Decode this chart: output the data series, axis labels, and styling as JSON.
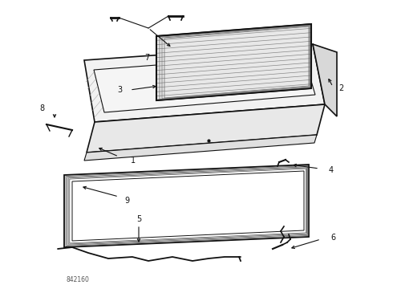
{
  "fig_width": 4.9,
  "fig_height": 3.6,
  "dpi": 100,
  "bg_color": "#ffffff",
  "line_color": "#111111",
  "diagram_id": "842160"
}
